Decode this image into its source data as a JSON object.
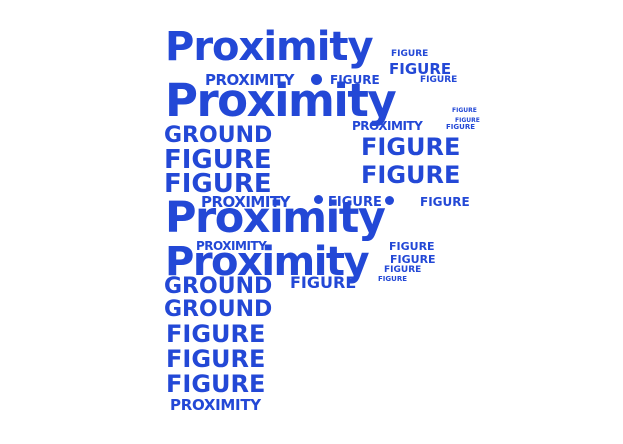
{
  "colors": {
    "word": "#2348d6",
    "background": "#ffffff"
  },
  "words": {
    "w1": "Proximity",
    "w2": "FIGURE",
    "w3": "FIGURE",
    "w4": "PROXIMITY",
    "w5": "FIGURE",
    "w6": "FIGURE",
    "w7": "Proximity",
    "w8": "FIGURE",
    "w9": "FIGURE",
    "w10": "PROXIMITY",
    "w11": "FIGURE",
    "w12": "GROUND",
    "w13": "FIGURE",
    "w14": "FIGURE",
    "w15": "FIGURE",
    "w16": "FIGURE",
    "w17": "PROXIMITY",
    "w18": "FIGURE",
    "w19": "FIGURE",
    "w20": "Proximity",
    "w21": "PROXIMITY",
    "w22": "FIGURE",
    "w23": "Proximity",
    "w24": "FIGURE",
    "w25": "FIGURE",
    "w26": "GROUND",
    "w27": "FIGURE",
    "w28": "FIGURE",
    "w29": "GROUND",
    "w30": "FIGURE",
    "w31": "FIGURE",
    "w32": "FIGURE",
    "w33": "PROXIMITY"
  }
}
